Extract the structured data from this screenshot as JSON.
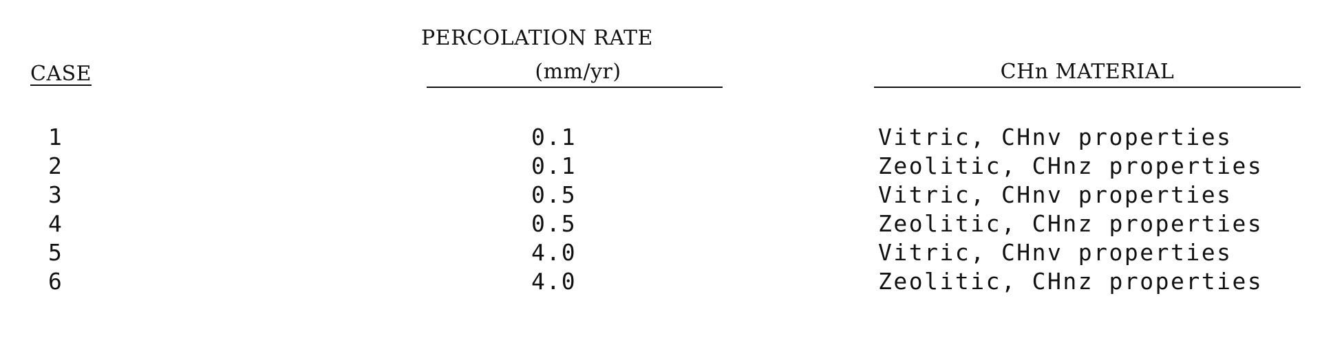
{
  "headers": {
    "case": "CASE",
    "rate_line1": "PERCOLATION RATE",
    "rate_line2": "(mm/yr)",
    "material": "CHn MATERIAL"
  },
  "rows": [
    {
      "case": "1",
      "rate": "0.1",
      "material": "Vitric, CHnv properties"
    },
    {
      "case": "2",
      "rate": "0.1",
      "material": "Zeolitic, CHnz properties"
    },
    {
      "case": "3",
      "rate": "0.5",
      "material": "Vitric, CHnv properties"
    },
    {
      "case": "4",
      "rate": "0.5",
      "material": "Zeolitic, CHnz properties"
    },
    {
      "case": "5",
      "rate": "4.0",
      "material": "Vitric, CHnv properties"
    },
    {
      "case": "6",
      "rate": "4.0",
      "material": "Zeolitic, CHnz properties"
    }
  ]
}
